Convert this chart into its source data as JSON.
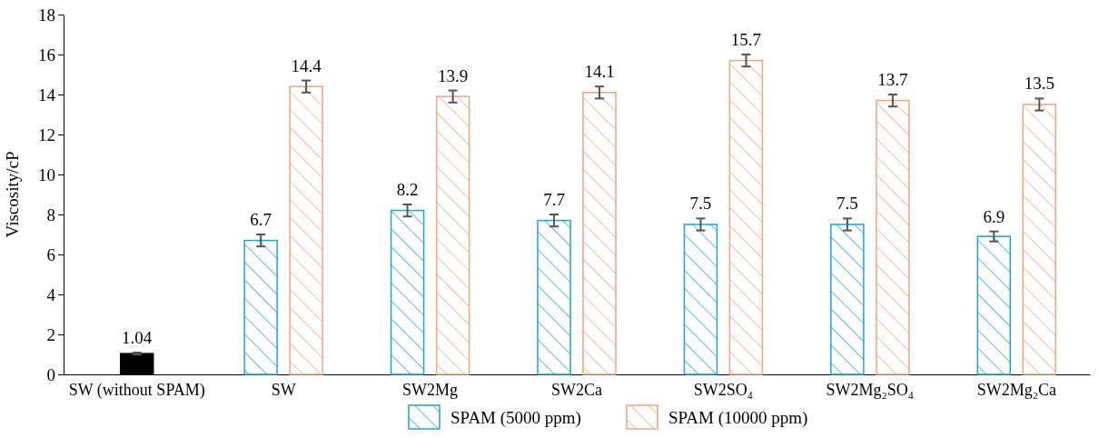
{
  "chart_data": {
    "type": "bar",
    "ylabel": "Viscosity/cP",
    "categories": [
      "SW (without SPAM)",
      "SW",
      "SW2Mg",
      "SW2Ca",
      "SW2SO₄",
      "SW2Mg₂SO₄",
      "SW2Mg₂Ca"
    ],
    "series": [
      {
        "color": "#000000",
        "values": [
          1.04,
          null,
          null,
          null,
          null,
          null,
          null
        ],
        "errors": [
          0.05,
          null,
          null,
          null,
          null,
          null,
          null
        ]
      },
      {
        "name": "SPAM (5000 ppm)",
        "color": "#1fa3dc",
        "values": [
          null,
          6.7,
          8.2,
          7.7,
          7.5,
          7.5,
          6.9
        ],
        "errors": [
          null,
          0.3,
          0.3,
          0.3,
          0.3,
          0.3,
          0.25
        ]
      },
      {
        "name": "SPAM (10000 ppm)",
        "color": "#f2a47c",
        "values": [
          null,
          14.4,
          13.9,
          14.1,
          15.7,
          13.7,
          13.5
        ],
        "errors": [
          null,
          0.3,
          0.3,
          0.3,
          0.3,
          0.3,
          0.3
        ]
      }
    ],
    "ylim": [
      0,
      18
    ],
    "yticks": [
      0,
      2,
      4,
      6,
      8,
      10,
      12,
      14,
      16,
      18
    ],
    "grid": false,
    "legend": "bottom",
    "data_labels": true
  }
}
